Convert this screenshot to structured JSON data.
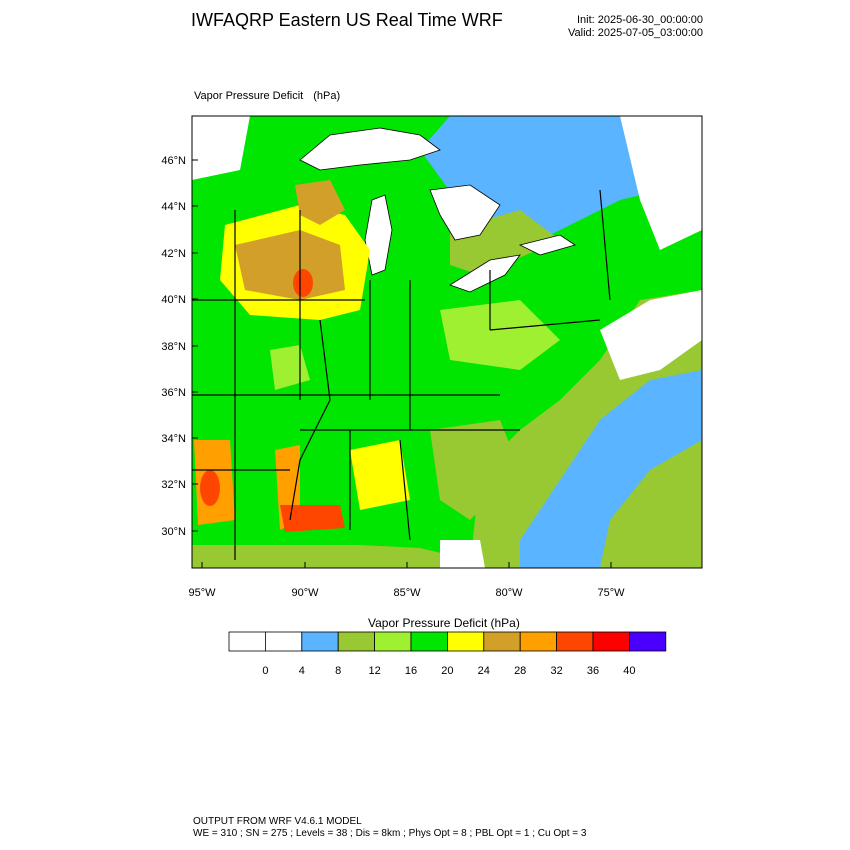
{
  "header": {
    "title": "IWFAQRP Eastern US Real Time WRF",
    "init": "Init: 2025-06-30_00:00:00",
    "valid": "Valid: 2025-07-05_03:00:00"
  },
  "field": {
    "name": "Vapor Pressure Deficit",
    "units": "(hPa)"
  },
  "axes": {
    "lat_ticks": [
      "30°N",
      "32°N",
      "34°N",
      "36°N",
      "38°N",
      "40°N",
      "42°N",
      "44°N",
      "46°N"
    ],
    "lon_ticks": [
      "95°W",
      "90°W",
      "85°W",
      "80°W",
      "75°W"
    ]
  },
  "legend": {
    "title": "Vapor Pressure Deficit  (hPa)",
    "colors": [
      "#ffffff",
      "#ffffff",
      "#5ab4ff",
      "#98c832",
      "#a0f032",
      "#00e600",
      "#ffff00",
      "#d2a028",
      "#ffa000",
      "#ff4600",
      "#ff0000",
      "#4b00ff"
    ],
    "labels": [
      "0",
      "4",
      "8",
      "12",
      "16",
      "20",
      "24",
      "28",
      "32",
      "36",
      "40"
    ]
  },
  "footer": {
    "line1": "OUTPUT FROM WRF V4.6.1 MODEL",
    "line2": "WE = 310 ; SN = 275 ; Levels = 38 ; Dis = 8km ; Phys Opt = 8 ; PBL Opt = 1 ; Cu Opt = 3"
  }
}
